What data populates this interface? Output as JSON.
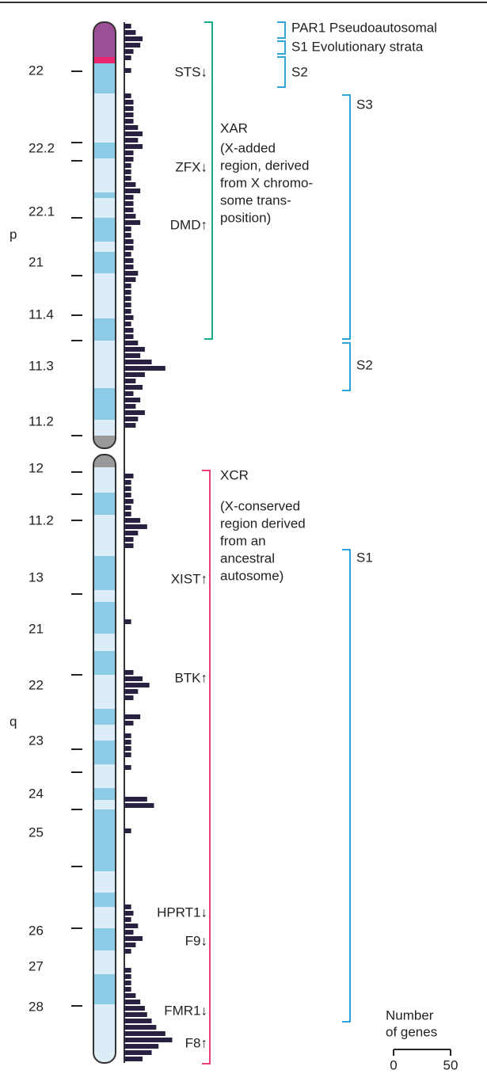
{
  "arm_labels": {
    "p": "p",
    "q": "q"
  },
  "band_labels": {
    "p": [
      "22",
      "22.2",
      "22.1",
      "21",
      "11.4",
      "11.3",
      "11.2"
    ],
    "q": [
      "12",
      "11.2",
      "13",
      "21",
      "22",
      "23",
      "24",
      "25",
      "26",
      "27",
      "28"
    ]
  },
  "genes": [
    "STS↓",
    "ZFX↓",
    "DMD↑",
    "XIST↑",
    "BTK↑",
    "HPRT1↓",
    "F9↓",
    "FMR1↓",
    "F8↑"
  ],
  "xar": {
    "title": "XAR",
    "lines": [
      "(X-added",
      "region, derived",
      "from X chromo-",
      "some trans-",
      "position)"
    ]
  },
  "xcr": {
    "title": "XCR",
    "lines": [
      "(X-conserved",
      "region derived",
      "from an",
      "ancestral",
      "autosome)"
    ]
  },
  "strata": [
    "PAR1 Pseudoautosomal",
    "S1 Evolutionary strata",
    "S2",
    "S3",
    "S2",
    "S1"
  ],
  "gene_histogram": {
    "values": [
      6,
      10,
      16,
      14,
      8,
      6,
      0,
      6,
      0,
      0,
      0,
      6,
      8,
      8,
      8,
      8,
      12,
      16,
      12,
      16,
      8,
      8,
      6,
      6,
      6,
      10,
      14,
      8,
      8,
      8,
      10,
      14,
      6,
      6,
      8,
      8,
      6,
      8,
      8,
      12,
      10,
      6,
      6,
      6,
      6,
      6,
      8,
      6,
      8,
      8,
      12,
      18,
      14,
      24,
      36,
      18,
      10,
      16,
      8,
      14,
      10,
      18,
      12,
      10,
      0,
      0,
      0,
      0,
      0,
      0,
      0,
      8,
      6,
      6,
      6,
      8,
      6,
      6,
      14,
      20,
      12,
      8,
      8,
      0,
      0,
      0,
      0,
      0,
      0,
      0,
      0,
      0,
      0,
      0,
      6,
      0,
      0,
      0,
      0,
      0,
      0,
      0,
      8,
      16,
      22,
      12,
      8,
      0,
      0,
      14,
      8,
      0,
      6,
      6,
      6,
      6,
      0,
      6,
      0,
      0,
      0,
      0,
      20,
      26,
      0,
      0,
      0,
      6,
      0,
      0,
      0,
      0,
      0,
      0,
      0,
      0,
      0,
      0,
      0,
      6,
      8,
      6,
      12,
      8,
      16,
      10,
      6,
      0,
      0,
      6,
      6,
      6,
      6,
      10,
      14,
      18,
      20,
      24,
      28,
      36,
      42,
      30,
      24,
      16
    ],
    "color": "#2a2140",
    "xlim": [
      0,
      50
    ],
    "xticks": [
      0,
      50
    ],
    "legend_title": [
      "Number",
      "of genes"
    ]
  }
}
